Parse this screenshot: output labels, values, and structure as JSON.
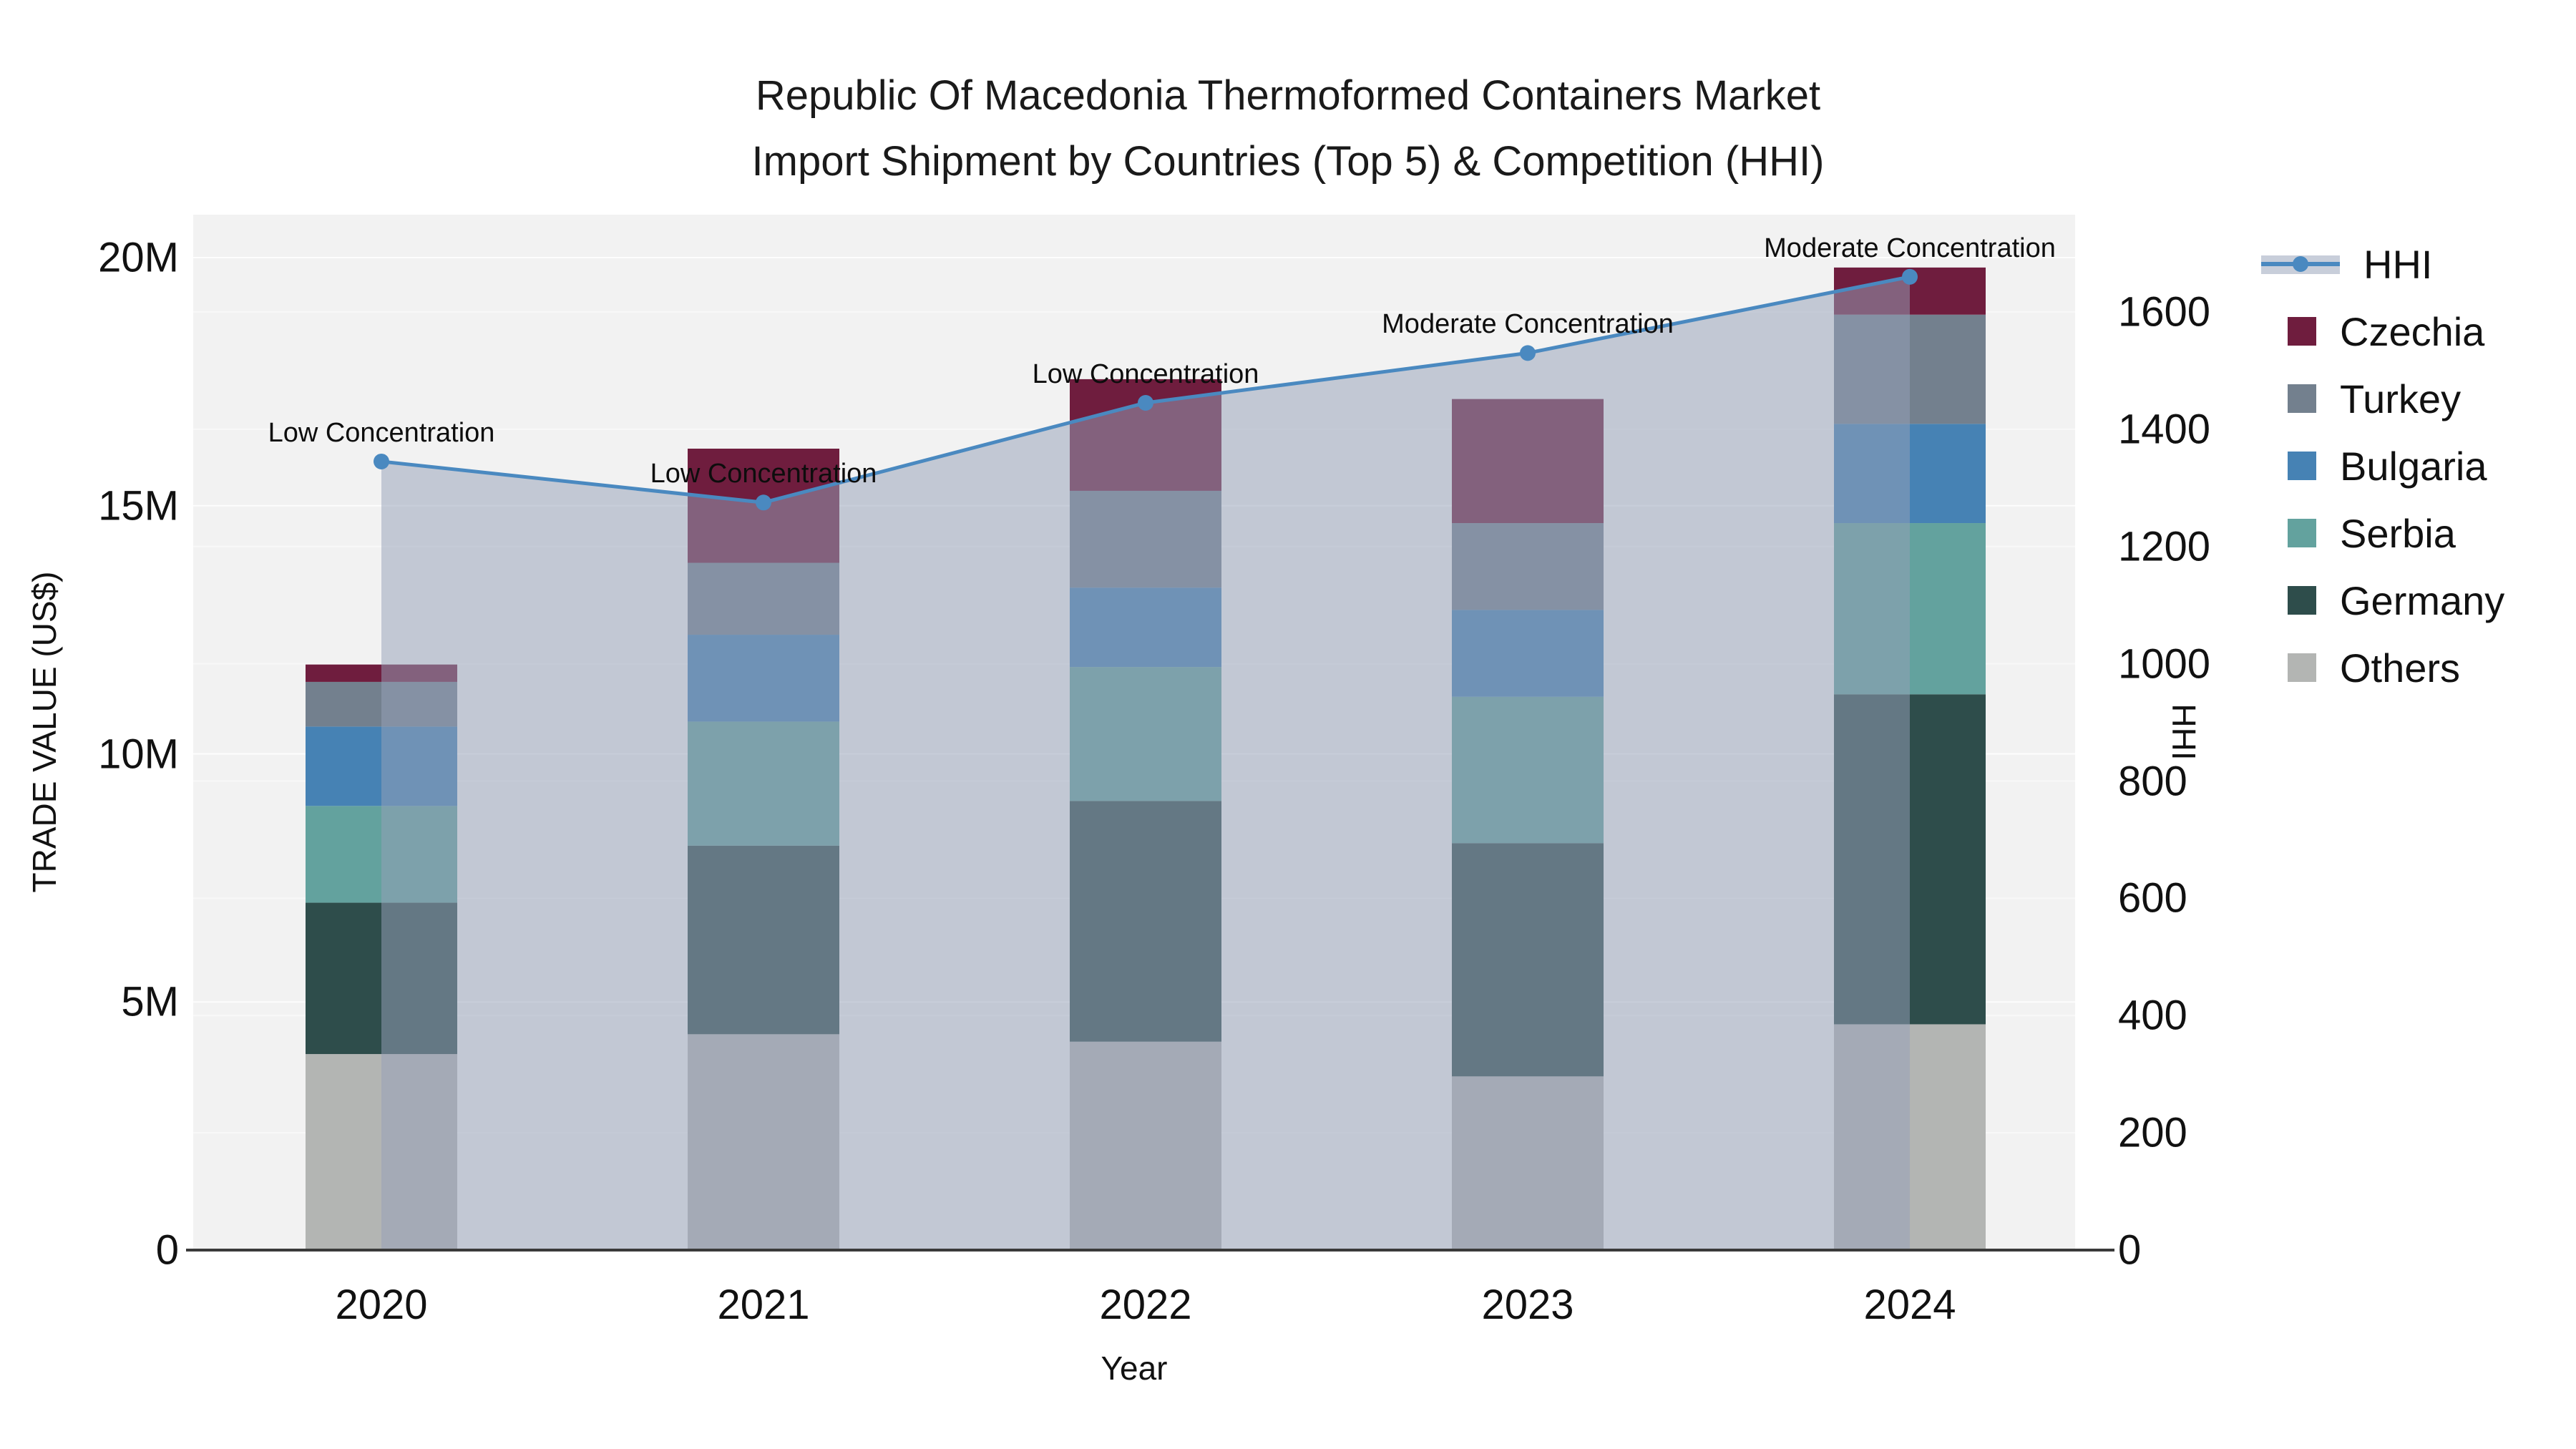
{
  "title": {
    "line1": "Republic Of Macedonia Thermoformed Containers Market",
    "line2": "Import Shipment by Countries (Top 5) & Competition (HHI)"
  },
  "axes": {
    "x": {
      "title": "Year",
      "categories": [
        "2020",
        "2021",
        "2022",
        "2023",
        "2024"
      ]
    },
    "y_left": {
      "title": "TRADE VALUE (US$)",
      "ticks": [
        "0",
        "5M",
        "10M",
        "15M",
        "20M"
      ],
      "tick_values_millions": [
        0,
        5,
        10,
        15,
        20
      ]
    },
    "y_right": {
      "title": "HHI",
      "ticks": [
        "0",
        "200",
        "400",
        "600",
        "800",
        "1000",
        "1200",
        "1400",
        "1600"
      ],
      "tick_values": [
        0,
        200,
        400,
        600,
        800,
        1000,
        1200,
        1400,
        1600
      ]
    }
  },
  "legend": {
    "items": [
      {
        "label": "HHI",
        "type": "line"
      },
      {
        "label": "Czechia",
        "type": "swatch"
      },
      {
        "label": "Turkey",
        "type": "swatch"
      },
      {
        "label": "Bulgaria",
        "type": "swatch"
      },
      {
        "label": "Serbia",
        "type": "swatch"
      },
      {
        "label": "Germany",
        "type": "swatch"
      },
      {
        "label": "Others",
        "type": "swatch"
      }
    ]
  },
  "colors": {
    "HHI": "#4a89c0",
    "Czechia": "#6f1d3e",
    "Turkey": "#73808e",
    "Bulgaria": "#4682b4",
    "Serbia": "#63a29e",
    "Germany": "#2e4d4b",
    "Others": "#b3b5b3",
    "area_fill": "rgba(150,162,185,0.52)",
    "plot_background": "#f2f2f2",
    "grid_line": "#ffffff",
    "axis_line": "#3a3a3a",
    "text": "#111111"
  },
  "chart_data": {
    "type": "bar+line",
    "title": "Republic Of Macedonia Thermoformed Containers Market Import Shipment by Countries (Top 5) & Competition (HHI)",
    "categories": [
      "2020",
      "2021",
      "2022",
      "2023",
      "2024"
    ],
    "xlabel": "Year",
    "ylabel_left": "TRADE VALUE (US$)",
    "ylabel_right": "HHI",
    "ylim_left_millions": [
      0,
      20
    ],
    "ylim_right": [
      0,
      1600
    ],
    "grid": true,
    "legend_position": "right",
    "bar_unit": "millions of US$",
    "stack_order_bottom_to_top": [
      "Others",
      "Germany",
      "Serbia",
      "Bulgaria",
      "Turkey",
      "Czechia"
    ],
    "series": [
      {
        "name": "Others",
        "values_millions": [
          3.95,
          4.35,
          4.2,
          3.5,
          4.55
        ]
      },
      {
        "name": "Germany",
        "values_millions": [
          3.05,
          3.8,
          4.85,
          4.7,
          6.65
        ]
      },
      {
        "name": "Serbia",
        "values_millions": [
          1.95,
          2.5,
          2.7,
          2.95,
          3.45
        ]
      },
      {
        "name": "Bulgaria",
        "values_millions": [
          1.6,
          1.75,
          1.6,
          1.75,
          2.0
        ]
      },
      {
        "name": "Turkey",
        "values_millions": [
          0.9,
          1.45,
          1.95,
          1.75,
          2.2
        ]
      },
      {
        "name": "Czechia",
        "values_millions": [
          0.35,
          2.3,
          2.25,
          2.5,
          0.95
        ]
      }
    ],
    "bar_totals_millions": [
      11.8,
      16.15,
      17.55,
      17.15,
      19.8
    ],
    "line_series": {
      "name": "HHI",
      "values": [
        1345,
        1275,
        1445,
        1530,
        1660
      ],
      "has_area_fill": true
    },
    "annotations": [
      {
        "x": "2020",
        "text": "Low Concentration"
      },
      {
        "x": "2021",
        "text": "Low Concentration"
      },
      {
        "x": "2022",
        "text": "Low Concentration"
      },
      {
        "x": "2023",
        "text": "Moderate Concentration"
      },
      {
        "x": "2024",
        "text": "Moderate Concentration"
      }
    ]
  }
}
